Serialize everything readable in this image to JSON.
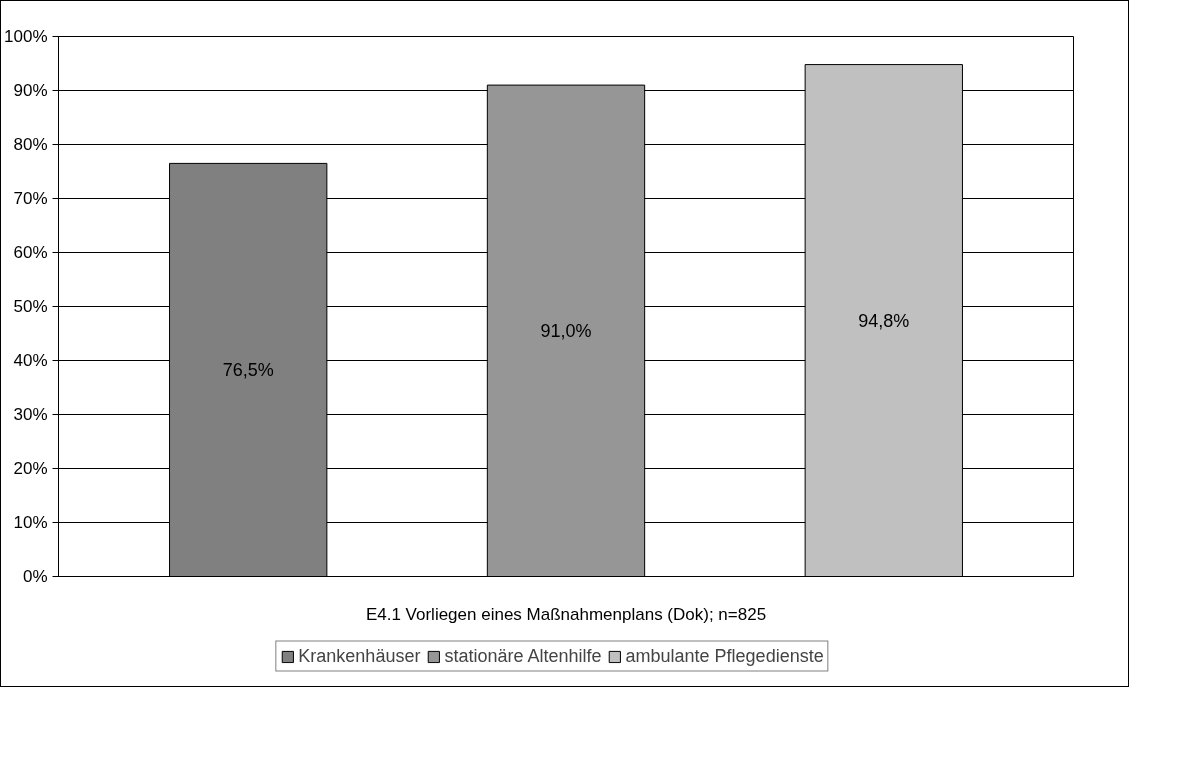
{
  "chart_data": {
    "type": "bar",
    "categories": [
      "E4.1 Vorliegen eines Maßnahmenplans (Dok); n=825"
    ],
    "series": [
      {
        "name": "Krankenhäuser",
        "color": "#808080",
        "values": [
          76.5
        ],
        "value_labels": [
          "76,5%"
        ]
      },
      {
        "name": "stationäre Altenhilfe",
        "color": "#969696",
        "values": [
          91.0
        ],
        "value_labels": [
          "91,0%"
        ]
      },
      {
        "name": "ambulante Pflegedienste",
        "color": "#c0c0c0",
        "values": [
          94.8
        ],
        "value_labels": [
          "94,8%"
        ]
      }
    ],
    "ylim": [
      0,
      100
    ],
    "yticks": [
      {
        "value": 0,
        "label": "0%"
      },
      {
        "value": 10,
        "label": "10%"
      },
      {
        "value": 20,
        "label": "20%"
      },
      {
        "value": 30,
        "label": "30%"
      },
      {
        "value": 40,
        "label": "40%"
      },
      {
        "value": 50,
        "label": "50%"
      },
      {
        "value": 60,
        "label": "60%"
      },
      {
        "value": 70,
        "label": "70%"
      },
      {
        "value": 80,
        "label": "80%"
      },
      {
        "value": 90,
        "label": "90%"
      },
      {
        "value": 100,
        "label": "100%"
      }
    ],
    "grid": "y",
    "legend": "bottom"
  }
}
